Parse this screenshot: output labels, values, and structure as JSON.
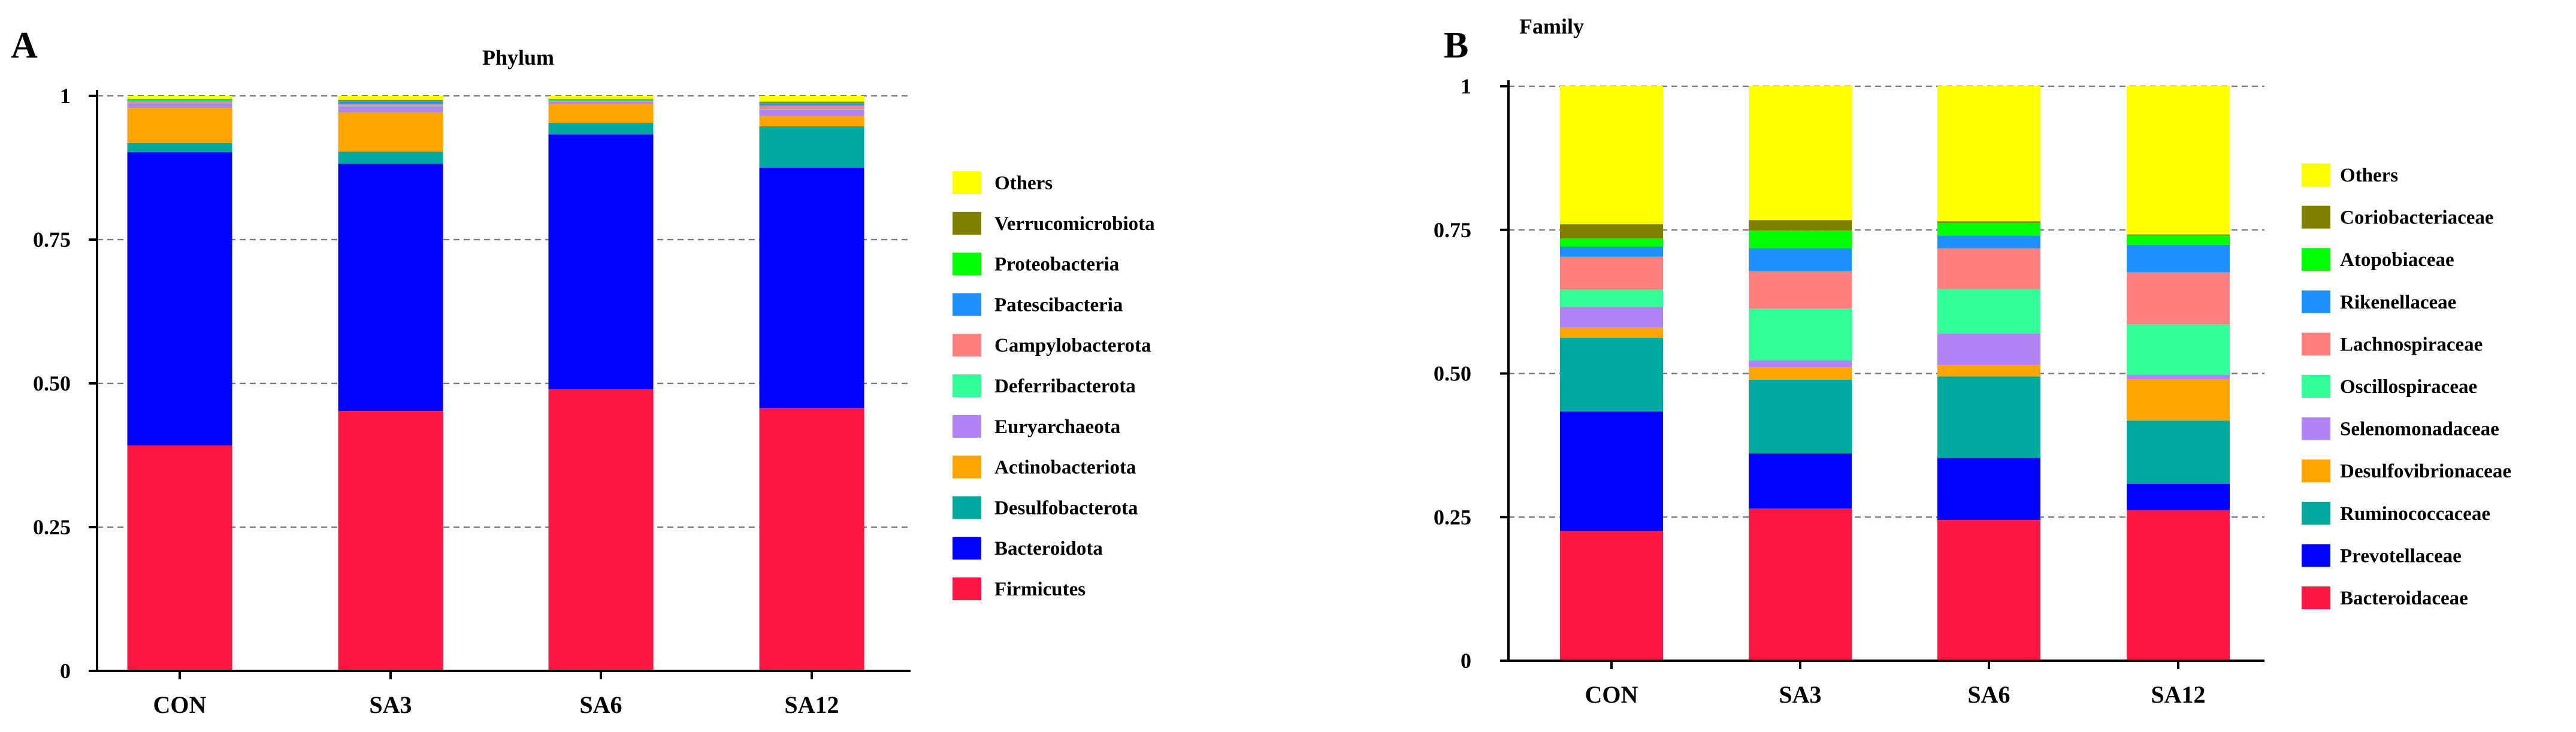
{
  "figure": {
    "panel_labels": [
      "A",
      "B"
    ]
  },
  "chart_data": [
    {
      "panel": "A",
      "type": "stacked-bar",
      "title": "Phylum",
      "xlabel": "",
      "ylabel": "",
      "ylim": [
        0,
        1
      ],
      "yticks": [
        0,
        0.25,
        0.5,
        0.75,
        1
      ],
      "ytick_labels": [
        "0",
        "0.25",
        "0.50",
        "0.75",
        "1"
      ],
      "grid": "dashed horizontal at each tick",
      "legend_position": "right",
      "categories": [
        "CON",
        "SA3",
        "SA6",
        "SA12"
      ],
      "series": [
        {
          "name": "Firmicutes",
          "color": "#ff1744",
          "values": [
            0.392,
            0.452,
            0.49,
            0.457
          ]
        },
        {
          "name": "Bacteroidota",
          "color": "#0000ff",
          "values": [
            0.51,
            0.43,
            0.443,
            0.418
          ]
        },
        {
          "name": "Desulfobacterota",
          "color": "#00a99d",
          "values": [
            0.016,
            0.021,
            0.02,
            0.072
          ]
        },
        {
          "name": "Actinobacteriota",
          "color": "#ffa500",
          "values": [
            0.061,
            0.068,
            0.033,
            0.018
          ]
        },
        {
          "name": "Euryarchaeota",
          "color": "#b084f5",
          "values": [
            0.008,
            0.011,
            0.004,
            0.011
          ]
        },
        {
          "name": "Deferribacterota",
          "color": "#33ff99",
          "values": [
            0.001,
            0.001,
            0.001,
            0.001
          ]
        },
        {
          "name": "Campylobacterota",
          "color": "#ff7f7f",
          "values": [
            0.003,
            0.003,
            0.001,
            0.006
          ]
        },
        {
          "name": "Patescibacteria",
          "color": "#1e90ff",
          "values": [
            0.001,
            0.004,
            0.001,
            0.004
          ]
        },
        {
          "name": "Proteobacteria",
          "color": "#00ff00",
          "values": [
            0.002,
            0.001,
            0.001,
            0.001
          ]
        },
        {
          "name": "Verrucomicrobiota",
          "color": "#808000",
          "values": [
            0.001,
            0.002,
            0.001,
            0.002
          ]
        },
        {
          "name": "Others",
          "color": "#ffff00",
          "values": [
            0.005,
            0.007,
            0.005,
            0.01
          ]
        }
      ]
    },
    {
      "panel": "B",
      "type": "stacked-bar",
      "title": "Family",
      "xlabel": "",
      "ylabel": "",
      "ylim": [
        0,
        1
      ],
      "yticks": [
        0,
        0.25,
        0.5,
        0.75,
        1
      ],
      "ytick_labels": [
        "0",
        "0.25",
        "0.50",
        "0.75",
        "1"
      ],
      "grid": "dashed horizontal at each tick",
      "legend_position": "right",
      "categories": [
        "CON",
        "SA3",
        "SA6",
        "SA12"
      ],
      "series": [
        {
          "name": "Bacteroidaceae",
          "color": "#ff1744",
          "values": [
            0.226,
            0.265,
            0.245,
            0.262
          ]
        },
        {
          "name": "Prevotellaceae",
          "color": "#0000ff",
          "values": [
            0.208,
            0.096,
            0.108,
            0.046
          ]
        },
        {
          "name": "Ruminococcaceae",
          "color": "#00a99d",
          "values": [
            0.128,
            0.128,
            0.142,
            0.11
          ]
        },
        {
          "name": "Desulfovibrionaceae",
          "color": "#ffa500",
          "values": [
            0.018,
            0.022,
            0.02,
            0.072
          ]
        },
        {
          "name": "Selenomonadaceae",
          "color": "#b084f5",
          "values": [
            0.036,
            0.012,
            0.055,
            0.008
          ]
        },
        {
          "name": "Oscillospiraceae",
          "color": "#33ff99",
          "values": [
            0.03,
            0.09,
            0.077,
            0.088
          ]
        },
        {
          "name": "Lachnospiraceae",
          "color": "#ff7f7f",
          "values": [
            0.057,
            0.065,
            0.071,
            0.09
          ]
        },
        {
          "name": "Rikenellaceae",
          "color": "#1e90ff",
          "values": [
            0.018,
            0.04,
            0.022,
            0.048
          ]
        },
        {
          "name": "Atopobiaceae",
          "color": "#00ff00",
          "values": [
            0.014,
            0.031,
            0.022,
            0.016
          ]
        },
        {
          "name": "Coriobacteriaceae",
          "color": "#808000",
          "values": [
            0.025,
            0.018,
            0.003,
            0.002
          ]
        },
        {
          "name": "Others",
          "color": "#ffff00",
          "values": [
            0.24,
            0.233,
            0.235,
            0.258
          ]
        }
      ]
    }
  ]
}
